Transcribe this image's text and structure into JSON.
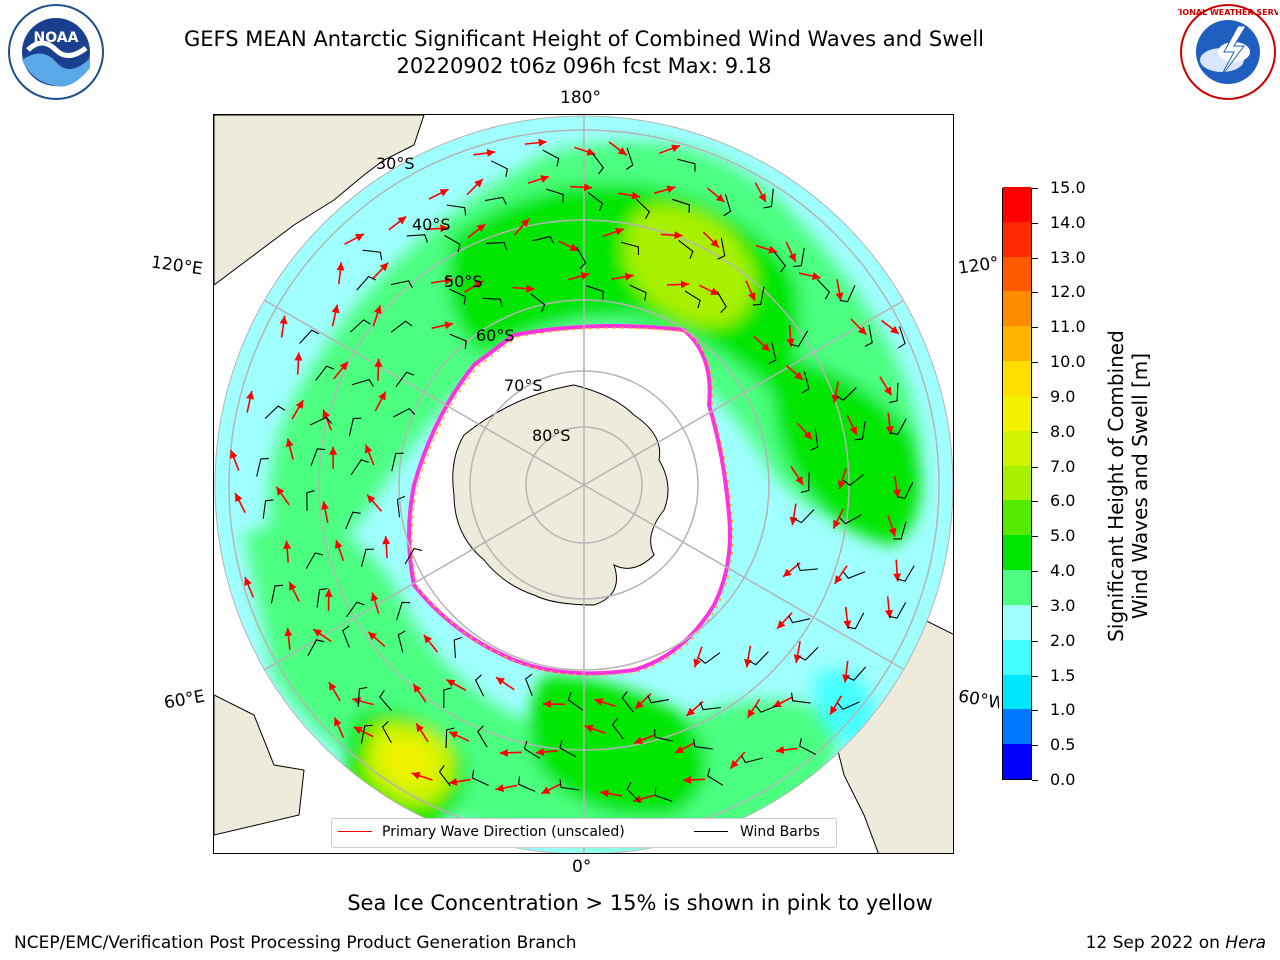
{
  "title": {
    "line1": "GEFS MEAN Antarctic Significant Height of Combined Wind Waves and Swell",
    "line2": "20220902 t06z 096h fcst   Max: 9.18"
  },
  "logos": {
    "left": {
      "icon": "noaa-logo",
      "text": "NOAA"
    },
    "right": {
      "icon": "nws-logo",
      "text": "NATIONAL WEATHER SERVICE"
    }
  },
  "map": {
    "projection": "south-polar-stereographic",
    "lon_labels": {
      "top": "180°",
      "bottom": "0°",
      "left_upper": "120°E",
      "left_lower": "60°E",
      "right_upper": "120°W",
      "right_lower": "60°W"
    },
    "lat_labels": [
      "30°S",
      "40°S",
      "50°S",
      "60°S",
      "70°S",
      "80°S"
    ],
    "colors": {
      "land": "#efebdc",
      "ice": "#ffffff",
      "ice_edge_pink": "#ff33dd",
      "ice_edge_orange": "#ffb020",
      "grid": "#b4b4b4",
      "wave_arrow": "#ff0000",
      "barb": "#000000"
    }
  },
  "legend": {
    "primary_wave_label": "Primary Wave Direction (unscaled)",
    "primary_wave_color": "#ff0000",
    "wind_barbs_label": "Wind Barbs",
    "wind_barbs_color": "#000000"
  },
  "colorbar": {
    "title_line1": "Significant Height of Combined",
    "title_line2": "Wind Waves and Swell [m]",
    "ticks": [
      "0.0",
      "0.5",
      "1.0",
      "1.5",
      "2.0",
      "3.0",
      "4.0",
      "5.0",
      "6.0",
      "7.0",
      "8.0",
      "9.0",
      "10.0",
      "11.0",
      "12.0",
      "13.0",
      "14.0",
      "15.0"
    ],
    "colors": [
      "#0000ff",
      "#0078ff",
      "#00e6ff",
      "#44ffff",
      "#a0ffff",
      "#4cff80",
      "#00e600",
      "#56ea00",
      "#a8f000",
      "#d0f400",
      "#f2f200",
      "#ffde00",
      "#ffb400",
      "#ff8c00",
      "#ff5a00",
      "#ff2800",
      "#ff0000"
    ]
  },
  "notes": {
    "sea_ice": "Sea Ice Concentration > 15% is shown in pink to yellow"
  },
  "footer": {
    "left": "NCEP/EMC/Verification Post Processing Product Generation Branch",
    "date": "12 Sep 2022 on",
    "host": "Hera"
  }
}
